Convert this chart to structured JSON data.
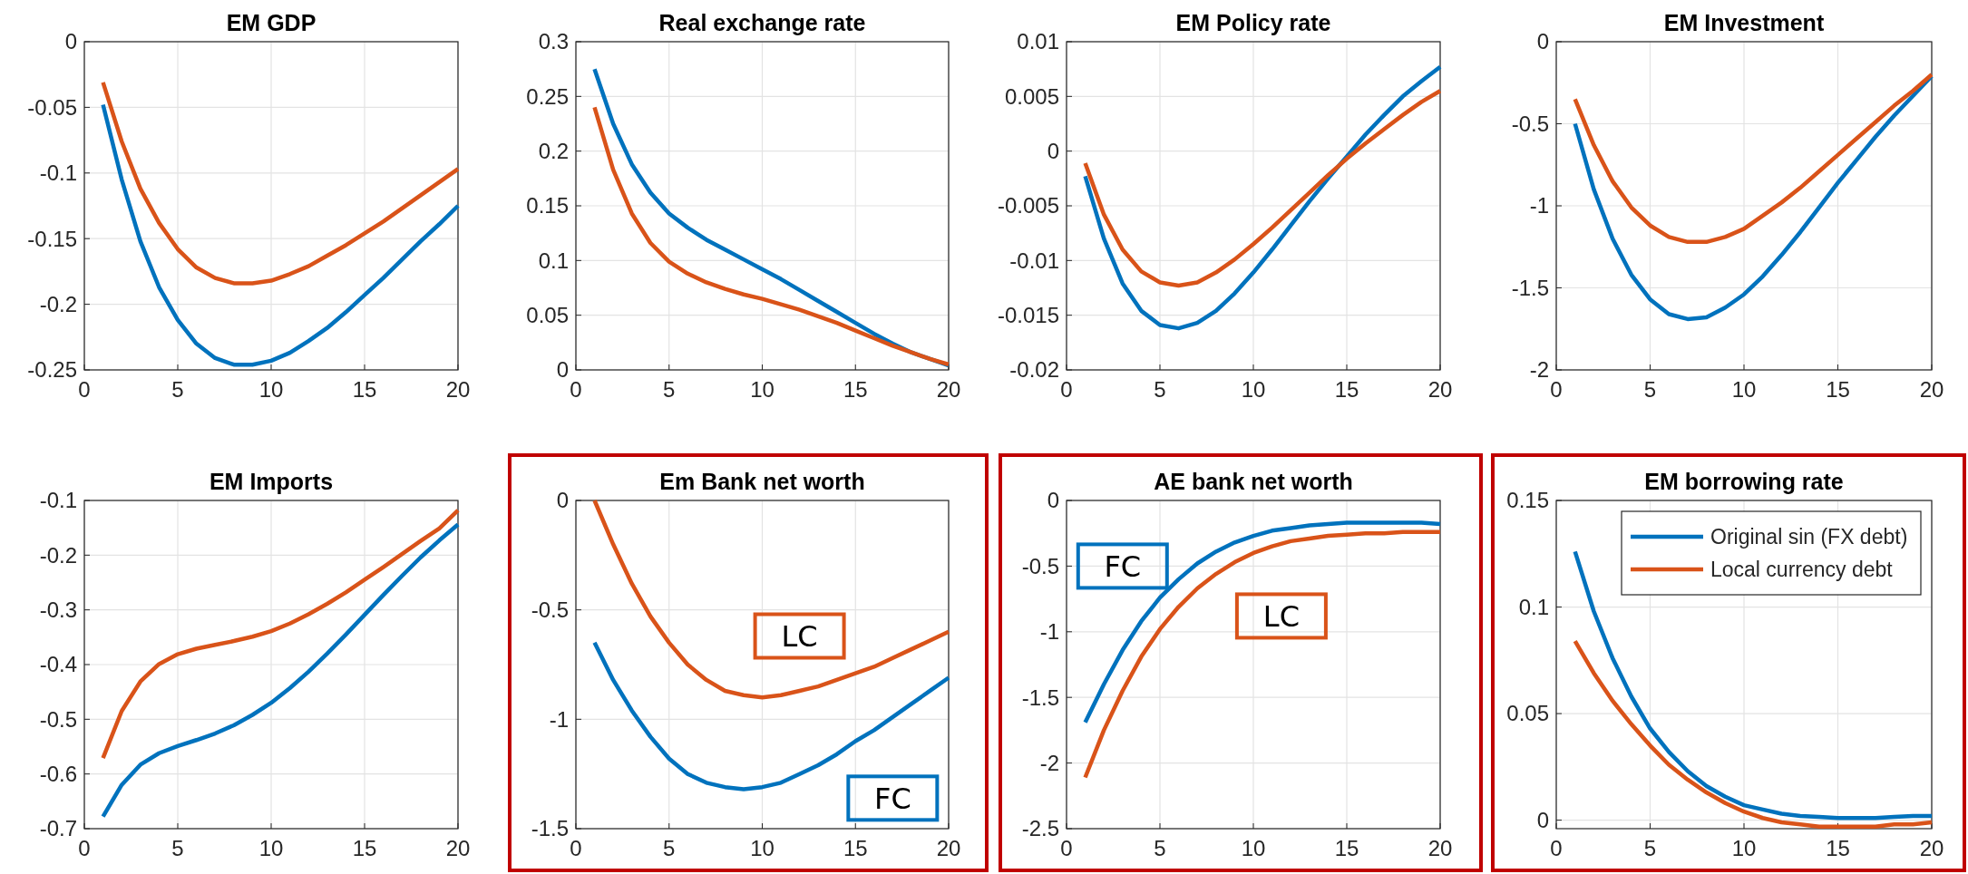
{
  "chart_data": [
    {
      "type": "line",
      "title": "EM GDP",
      "x": [
        1,
        2,
        3,
        4,
        5,
        6,
        7,
        8,
        9,
        10,
        11,
        12,
        13,
        14,
        15,
        16,
        17,
        18,
        19,
        20
      ],
      "xlim": [
        0,
        20
      ],
      "xticks": [
        0,
        5,
        10,
        15,
        20
      ],
      "ylim": [
        -0.25,
        0
      ],
      "yticks": [
        -0.25,
        -0.2,
        -0.15,
        -0.1,
        -0.05,
        0
      ],
      "grid": true,
      "series": [
        {
          "color": "#0072bd",
          "values": [
            -0.048,
            -0.105,
            -0.152,
            -0.187,
            -0.212,
            -0.23,
            -0.241,
            -0.246,
            -0.246,
            -0.243,
            -0.237,
            -0.228,
            -0.218,
            -0.206,
            -0.193,
            -0.18,
            -0.166,
            -0.152,
            -0.139,
            -0.125
          ]
        },
        {
          "color": "#d95319",
          "values": [
            -0.031,
            -0.076,
            -0.112,
            -0.138,
            -0.158,
            -0.172,
            -0.18,
            -0.184,
            -0.184,
            -0.182,
            -0.177,
            -0.171,
            -0.163,
            -0.155,
            -0.146,
            -0.137,
            -0.127,
            -0.117,
            -0.107,
            -0.097
          ]
        }
      ]
    },
    {
      "type": "line",
      "title": "Real exchange rate",
      "x": [
        1,
        2,
        3,
        4,
        5,
        6,
        7,
        8,
        9,
        10,
        11,
        12,
        13,
        14,
        15,
        16,
        17,
        18,
        19,
        20
      ],
      "xlim": [
        0,
        20
      ],
      "xticks": [
        0,
        5,
        10,
        15,
        20
      ],
      "ylim": [
        0,
        0.3
      ],
      "yticks": [
        0,
        0.05,
        0.1,
        0.15,
        0.2,
        0.25,
        0.3
      ],
      "grid": true,
      "series": [
        {
          "color": "#0072bd",
          "values": [
            0.275,
            0.225,
            0.188,
            0.162,
            0.143,
            0.13,
            0.119,
            0.11,
            0.101,
            0.092,
            0.083,
            0.073,
            0.063,
            0.053,
            0.043,
            0.033,
            0.024,
            0.016,
            0.01,
            0.004
          ]
        },
        {
          "color": "#d95319",
          "values": [
            0.24,
            0.183,
            0.143,
            0.116,
            0.099,
            0.088,
            0.08,
            0.074,
            0.069,
            0.065,
            0.06,
            0.055,
            0.049,
            0.043,
            0.036,
            0.029,
            0.022,
            0.016,
            0.01,
            0.005
          ]
        }
      ]
    },
    {
      "type": "line",
      "title": "EM Policy rate",
      "x": [
        1,
        2,
        3,
        4,
        5,
        6,
        7,
        8,
        9,
        10,
        11,
        12,
        13,
        14,
        15,
        16,
        17,
        18,
        19,
        20
      ],
      "xlim": [
        0,
        20
      ],
      "xticks": [
        0,
        5,
        10,
        15,
        20
      ],
      "ylim": [
        -0.02,
        0.01
      ],
      "yticks": [
        -0.02,
        -0.015,
        -0.01,
        -0.005,
        0,
        0.005,
        0.01
      ],
      "grid": true,
      "series": [
        {
          "color": "#0072bd",
          "values": [
            -0.0023,
            -0.008,
            -0.0121,
            -0.0146,
            -0.0159,
            -0.0162,
            -0.0157,
            -0.0146,
            -0.013,
            -0.0111,
            -0.009,
            -0.0068,
            -0.0046,
            -0.0025,
            -0.0005,
            0.0015,
            0.0033,
            0.005,
            0.0064,
            0.0077
          ]
        },
        {
          "color": "#d95319",
          "values": [
            -0.0011,
            -0.0058,
            -0.009,
            -0.011,
            -0.012,
            -0.0123,
            -0.012,
            -0.0111,
            -0.0099,
            -0.0085,
            -0.007,
            -0.0054,
            -0.0038,
            -0.0022,
            -0.0007,
            0.0007,
            0.002,
            0.0033,
            0.0045,
            0.0055
          ]
        }
      ]
    },
    {
      "type": "line",
      "title": "EM Investment",
      "x": [
        1,
        2,
        3,
        4,
        5,
        6,
        7,
        8,
        9,
        10,
        11,
        12,
        13,
        14,
        15,
        16,
        17,
        18,
        19,
        20
      ],
      "xlim": [
        0,
        20
      ],
      "xticks": [
        0,
        5,
        10,
        15,
        20
      ],
      "ylim": [
        -2,
        0
      ],
      "yticks": [
        -2,
        -1.5,
        -1,
        -0.5,
        0
      ],
      "grid": true,
      "series": [
        {
          "color": "#0072bd",
          "values": [
            -0.5,
            -0.9,
            -1.2,
            -1.42,
            -1.57,
            -1.66,
            -1.69,
            -1.68,
            -1.62,
            -1.54,
            -1.43,
            -1.3,
            -1.16,
            -1.01,
            -0.86,
            -0.72,
            -0.58,
            -0.45,
            -0.33,
            -0.21
          ]
        },
        {
          "color": "#d95319",
          "values": [
            -0.35,
            -0.63,
            -0.85,
            -1.01,
            -1.12,
            -1.19,
            -1.22,
            -1.22,
            -1.19,
            -1.14,
            -1.06,
            -0.98,
            -0.89,
            -0.79,
            -0.69,
            -0.59,
            -0.49,
            -0.39,
            -0.3,
            -0.2
          ]
        }
      ]
    },
    {
      "type": "line",
      "title": "EM Imports",
      "x": [
        1,
        2,
        3,
        4,
        5,
        6,
        7,
        8,
        9,
        10,
        11,
        12,
        13,
        14,
        15,
        16,
        17,
        18,
        19,
        20
      ],
      "xlim": [
        0,
        20
      ],
      "xticks": [
        0,
        5,
        10,
        15,
        20
      ],
      "ylim": [
        -0.7,
        -0.1
      ],
      "yticks": [
        -0.7,
        -0.6,
        -0.5,
        -0.4,
        -0.3,
        -0.2,
        -0.1
      ],
      "grid": true,
      "series": [
        {
          "color": "#0072bd",
          "values": [
            -0.678,
            -0.62,
            -0.583,
            -0.562,
            -0.549,
            -0.538,
            -0.526,
            -0.511,
            -0.492,
            -0.47,
            -0.443,
            -0.413,
            -0.38,
            -0.345,
            -0.309,
            -0.273,
            -0.238,
            -0.204,
            -0.173,
            -0.144
          ]
        },
        {
          "color": "#d95319",
          "values": [
            -0.571,
            -0.485,
            -0.431,
            -0.399,
            -0.381,
            -0.371,
            -0.364,
            -0.357,
            -0.349,
            -0.339,
            -0.325,
            -0.308,
            -0.289,
            -0.268,
            -0.245,
            -0.222,
            -0.198,
            -0.174,
            -0.151,
            -0.118
          ]
        }
      ]
    },
    {
      "type": "line",
      "title": "Em Bank net worth",
      "x": [
        1,
        2,
        3,
        4,
        5,
        6,
        7,
        8,
        9,
        10,
        11,
        12,
        13,
        14,
        15,
        16,
        17,
        18,
        19,
        20
      ],
      "xlim": [
        0,
        20
      ],
      "xticks": [
        0,
        5,
        10,
        15,
        20
      ],
      "ylim": [
        -1.5,
        0
      ],
      "yticks": [
        -1.5,
        -1,
        -0.5,
        0
      ],
      "grid": true,
      "annotations": [
        "LC",
        "FC"
      ],
      "series": [
        {
          "color": "#0072bd",
          "values": [
            -0.65,
            -0.82,
            -0.96,
            -1.08,
            -1.18,
            -1.25,
            -1.29,
            -1.31,
            -1.32,
            -1.31,
            -1.29,
            -1.25,
            -1.21,
            -1.16,
            -1.1,
            -1.05,
            -0.99,
            -0.93,
            -0.87,
            -0.81
          ]
        },
        {
          "color": "#d95319",
          "values": [
            0,
            -0.2,
            -0.38,
            -0.53,
            -0.65,
            -0.75,
            -0.82,
            -0.87,
            -0.89,
            -0.9,
            -0.89,
            -0.87,
            -0.85,
            -0.82,
            -0.79,
            -0.76,
            -0.72,
            -0.68,
            -0.64,
            -0.6
          ]
        }
      ]
    },
    {
      "type": "line",
      "title": "AE bank net worth",
      "x": [
        1,
        2,
        3,
        4,
        5,
        6,
        7,
        8,
        9,
        10,
        11,
        12,
        13,
        14,
        15,
        16,
        17,
        18,
        19,
        20
      ],
      "xlim": [
        0,
        20
      ],
      "xticks": [
        0,
        5,
        10,
        15,
        20
      ],
      "ylim": [
        -2.5,
        0
      ],
      "yticks": [
        -2.5,
        -2,
        -1.5,
        -1,
        -0.5,
        0
      ],
      "grid": true,
      "annotations": [
        "FC",
        "LC"
      ],
      "series": [
        {
          "color": "#0072bd",
          "values": [
            -1.69,
            -1.4,
            -1.14,
            -0.92,
            -0.74,
            -0.6,
            -0.48,
            -0.39,
            -0.32,
            -0.27,
            -0.23,
            -0.21,
            -0.19,
            -0.18,
            -0.17,
            -0.17,
            -0.17,
            -0.17,
            -0.17,
            -0.18
          ]
        },
        {
          "color": "#d95319",
          "values": [
            -2.11,
            -1.75,
            -1.45,
            -1.19,
            -0.98,
            -0.81,
            -0.67,
            -0.56,
            -0.47,
            -0.4,
            -0.35,
            -0.31,
            -0.29,
            -0.27,
            -0.26,
            -0.25,
            -0.25,
            -0.24,
            -0.24,
            -0.24
          ]
        }
      ]
    },
    {
      "type": "line",
      "title": "EM borrowing rate",
      "x": [
        1,
        2,
        3,
        4,
        5,
        6,
        7,
        8,
        9,
        10,
        11,
        12,
        13,
        14,
        15,
        16,
        17,
        18,
        19,
        20
      ],
      "xlim": [
        0,
        20
      ],
      "xticks": [
        0,
        5,
        10,
        15,
        20
      ],
      "ylim": [
        -0.004,
        0.15
      ],
      "yticks": [
        0,
        0.05,
        0.1,
        0.15
      ],
      "grid": true,
      "legend": "top right",
      "series": [
        {
          "name": "Original sin (FX debt)",
          "color": "#0072bd",
          "values": [
            0.126,
            0.098,
            0.076,
            0.058,
            0.043,
            0.032,
            0.023,
            0.016,
            0.011,
            0.007,
            0.005,
            0.003,
            0.002,
            0.0015,
            0.001,
            0.001,
            0.001,
            0.0015,
            0.002,
            0.002
          ]
        },
        {
          "name": "Local currency debt",
          "color": "#d95319",
          "values": [
            0.084,
            0.069,
            0.056,
            0.045,
            0.035,
            0.026,
            0.019,
            0.013,
            0.008,
            0.004,
            0.001,
            -0.001,
            -0.002,
            -0.003,
            -0.003,
            -0.003,
            -0.003,
            -0.002,
            -0.002,
            -0.001
          ]
        }
      ]
    }
  ]
}
